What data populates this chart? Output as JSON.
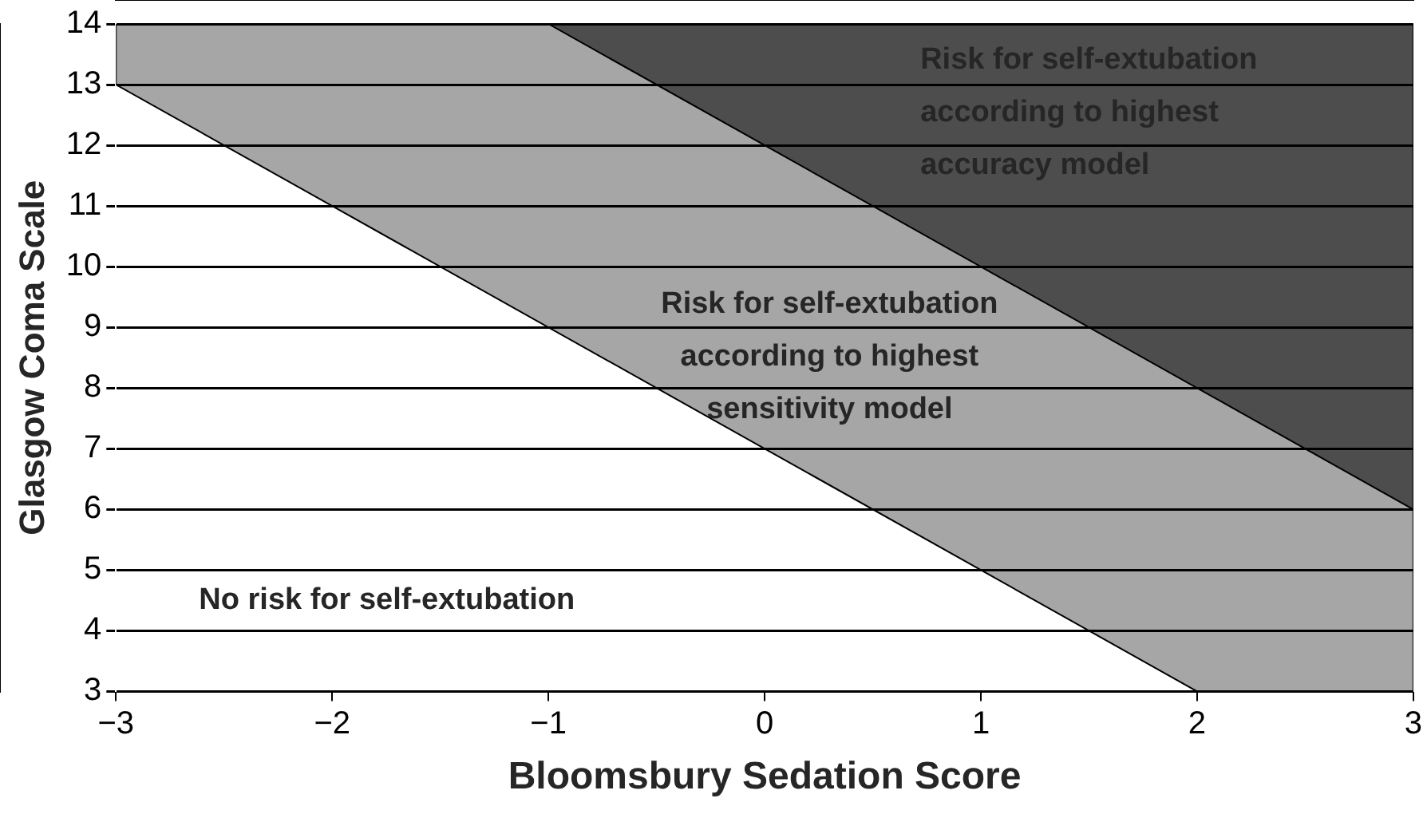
{
  "chart_data": {
    "type": "area",
    "xlabel": "Bloomsbury Sedation Score",
    "ylabel": "Glasgow Coma Scale",
    "series": [
      {
        "x": [
          -3,
          -3,
          2,
          3,
          3
        ],
        "values": [
          14,
          13,
          3,
          3,
          14
        ],
        "color": "#a6a6a6"
      },
      {
        "x": [
          -1,
          3,
          3
        ],
        "values": [
          14,
          6,
          14
        ],
        "color": "#4d4d4d"
      }
    ],
    "xlim": [
      -3,
      3
    ],
    "xticks": [
      {
        "value": -3,
        "label": "−3"
      },
      {
        "value": -2,
        "label": "−2"
      },
      {
        "value": -1,
        "label": "−1"
      },
      0,
      1,
      2,
      3
    ],
    "ylim": [
      3,
      14
    ],
    "yticks": [
      3,
      4,
      5,
      6,
      7,
      8,
      9,
      10,
      11,
      12,
      13,
      14
    ],
    "grid": "y",
    "annotations": [
      "Risk for self-extubation according to highest accuracy model",
      "Risk for self-extubation according to highest sensitivity model",
      "No risk for self-extubation"
    ]
  }
}
